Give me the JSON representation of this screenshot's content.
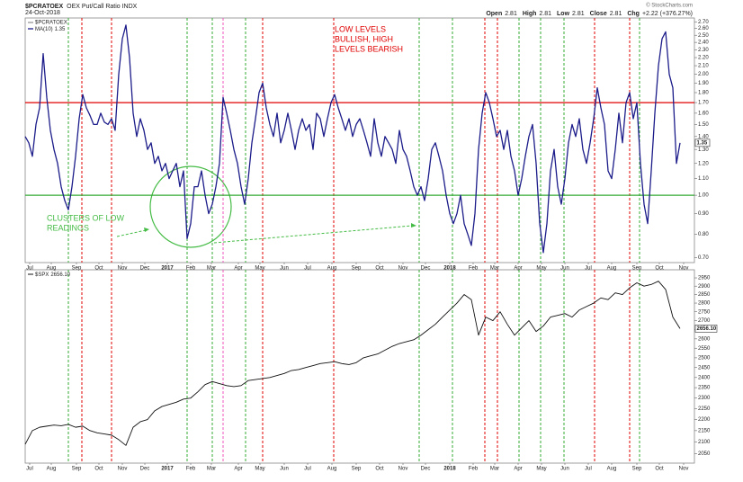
{
  "chart_data": [
    {
      "type": "line",
      "ticker": "$PCRATOEX",
      "title": "OEX Put/Call Ratio INDX",
      "date": "24-Oct-2018",
      "watermark": "© StockCharts.com",
      "stats": [
        {
          "label": "Open",
          "value": 2.81
        },
        {
          "label": "High",
          "value": 2.81
        },
        {
          "label": "Low",
          "value": 2.81
        },
        {
          "label": "Close",
          "value": 2.81
        }
      ],
      "change_label": "Chg",
      "change": "+2.22 (+376.27%)",
      "log": true,
      "xlim": [
        0,
        186
      ],
      "ylim": [
        0.68,
        2.76
      ],
      "xticks": [
        {
          "value": 1.25,
          "label": "Jul"
        },
        {
          "value": 7.25,
          "label": "Aug"
        },
        {
          "value": 14.25,
          "label": "Sep"
        },
        {
          "value": 20.5,
          "label": "Oct"
        },
        {
          "value": 27,
          "label": "Nov"
        },
        {
          "value": 33.25,
          "label": "Dec"
        },
        {
          "value": 39.5,
          "label": "2017"
        },
        {
          "value": 46,
          "label": "Feb"
        },
        {
          "value": 51.75,
          "label": "Mar"
        },
        {
          "value": 59.25,
          "label": "Apr"
        },
        {
          "value": 65.25,
          "label": "May"
        },
        {
          "value": 72,
          "label": "Jun"
        },
        {
          "value": 78.5,
          "label": "Jul"
        },
        {
          "value": 85.25,
          "label": "Aug"
        },
        {
          "value": 92,
          "label": "Sep"
        },
        {
          "value": 98.5,
          "label": "Oct"
        },
        {
          "value": 105,
          "label": "Nov"
        },
        {
          "value": 111.25,
          "label": "Dec"
        },
        {
          "value": 118,
          "label": "2018"
        },
        {
          "value": 124.5,
          "label": "Feb"
        },
        {
          "value": 130.5,
          "label": "Mar"
        },
        {
          "value": 137,
          "label": "Apr"
        },
        {
          "value": 143.5,
          "label": "May"
        },
        {
          "value": 150,
          "label": "Jun"
        },
        {
          "value": 156.5,
          "label": "Jul"
        },
        {
          "value": 163,
          "label": "Aug"
        },
        {
          "value": 170,
          "label": "Sep"
        },
        {
          "value": 176.25,
          "label": "Oct"
        },
        {
          "value": 183,
          "label": "Nov"
        }
      ],
      "yticks": [
        {
          "value": 0.7,
          "label": "0.70"
        },
        {
          "value": 0.8,
          "label": "0.80"
        },
        {
          "value": 0.9,
          "label": "0.90"
        },
        {
          "value": 1.0,
          "label": "1.00"
        },
        {
          "value": 1.1,
          "label": "1.10"
        },
        {
          "value": 1.2,
          "label": "1.20"
        },
        {
          "value": 1.3,
          "label": "1.30"
        },
        {
          "value": 1.4,
          "label": "1.40"
        },
        {
          "value": 1.5,
          "label": "1.50"
        },
        {
          "value": 1.6,
          "label": "1.60"
        },
        {
          "value": 1.7,
          "label": "1.70"
        },
        {
          "value": 1.8,
          "label": "1.80"
        },
        {
          "value": 1.9,
          "label": "1.90"
        },
        {
          "value": 2.0,
          "label": "2.00"
        },
        {
          "value": 2.1,
          "label": "2.10"
        },
        {
          "value": 2.2,
          "label": "2.20"
        },
        {
          "value": 2.3,
          "label": "2.30"
        },
        {
          "value": 2.4,
          "label": "2.40"
        },
        {
          "value": 2.5,
          "label": "2.50"
        },
        {
          "value": 2.6,
          "label": "2.60"
        },
        {
          "value": 2.7,
          "label": "2.70"
        }
      ],
      "hlines": [
        {
          "value": 1.7,
          "color": "#e00000"
        },
        {
          "value": 1.0,
          "color": "#33aa33"
        }
      ],
      "vlines": [
        {
          "x": 12,
          "color": "#33aa33"
        },
        {
          "x": 15.75,
          "color": "#e00000"
        },
        {
          "x": 24,
          "color": "#e00000"
        },
        {
          "x": 45,
          "color": "#33aa33"
        },
        {
          "x": 52,
          "color": "#33aa33"
        },
        {
          "x": 55,
          "color": "#ee55bb"
        },
        {
          "x": 61.25,
          "color": "#33aa33"
        },
        {
          "x": 66,
          "color": "#e00000"
        },
        {
          "x": 85.75,
          "color": "#e00000"
        },
        {
          "x": 109.5,
          "color": "#33aa33"
        },
        {
          "x": 118.75,
          "color": "#33aa33"
        },
        {
          "x": 127.75,
          "color": "#e00000"
        },
        {
          "x": 131.25,
          "color": "#e00000"
        },
        {
          "x": 137.25,
          "color": "#33aa33"
        },
        {
          "x": 143.25,
          "color": "#33aa33"
        },
        {
          "x": 149.75,
          "color": "#33aa33"
        },
        {
          "x": 158.25,
          "color": "#e00000"
        },
        {
          "x": 168,
          "color": "#e00000"
        },
        {
          "x": 170.75,
          "color": "#33aa33"
        }
      ],
      "annotations": [
        {
          "lines": [
            "LOW LEVELS",
            "BULLISH, HIGH",
            "LEVELS BEARISH"
          ],
          "color": "#e00000"
        },
        {
          "lines": [
            "CLUSTERS OF LOW",
            "READINGS"
          ],
          "color": "#44bb44"
        }
      ],
      "last_value": 1.35,
      "x": [
        0,
        1,
        2,
        3,
        4,
        5,
        6,
        7,
        8,
        9,
        10,
        11,
        12,
        13,
        14,
        15,
        16,
        17,
        18,
        19,
        20,
        21,
        22,
        23,
        24,
        25,
        26,
        27,
        28,
        29,
        30,
        31,
        32,
        33,
        34,
        35,
        36,
        37,
        38,
        39,
        40,
        41,
        42,
        43,
        44,
        45,
        46,
        47,
        48,
        49,
        50,
        51,
        52,
        53,
        54,
        55,
        56,
        57,
        58,
        59,
        60,
        61,
        62,
        63,
        64,
        65,
        66,
        67,
        68,
        69,
        70,
        71,
        72,
        73,
        74,
        75,
        76,
        77,
        78,
        79,
        80,
        81,
        82,
        83,
        84,
        85,
        86,
        87,
        88,
        89,
        90,
        91,
        92,
        93,
        94,
        95,
        96,
        97,
        98,
        99,
        100,
        101,
        102,
        103,
        104,
        105,
        106,
        107,
        108,
        109,
        110,
        111,
        112,
        113,
        114,
        115,
        116,
        117,
        118,
        119,
        120,
        121,
        122,
        123,
        124,
        125,
        126,
        127,
        128,
        129,
        130,
        131,
        132,
        133,
        134,
        135,
        136,
        137,
        138,
        139,
        140,
        141,
        142,
        143,
        144,
        145,
        146,
        147,
        148,
        149,
        150,
        151,
        152,
        153,
        154,
        155,
        156,
        157,
        158,
        159,
        160,
        161,
        162,
        163,
        164,
        165,
        166,
        167,
        168,
        169,
        170,
        171,
        172,
        173,
        174,
        175,
        176,
        177,
        178,
        179,
        180,
        181,
        182
      ],
      "series": [
        {
          "name": "MA(10)",
          "color": "#1c1c8a",
          "values": [
            1.4,
            1.35,
            1.25,
            1.5,
            1.65,
            2.25,
            1.75,
            1.45,
            1.3,
            1.2,
            1.05,
            0.97,
            0.92,
            1.05,
            1.25,
            1.55,
            1.78,
            1.65,
            1.58,
            1.5,
            1.5,
            1.6,
            1.52,
            1.5,
            1.55,
            1.45,
            2.0,
            2.45,
            2.65,
            2.2,
            1.6,
            1.4,
            1.55,
            1.45,
            1.3,
            1.35,
            1.2,
            1.25,
            1.15,
            1.2,
            1.1,
            1.15,
            1.2,
            1.05,
            1.15,
            0.78,
            0.85,
            1.05,
            1.05,
            1.15,
            1.0,
            0.9,
            0.95,
            1.05,
            1.2,
            1.75,
            1.6,
            1.45,
            1.3,
            1.2,
            1.05,
            0.95,
            1.1,
            1.35,
            1.55,
            1.8,
            1.9,
            1.65,
            1.5,
            1.4,
            1.6,
            1.35,
            1.45,
            1.6,
            1.45,
            1.3,
            1.45,
            1.55,
            1.45,
            1.5,
            1.3,
            1.6,
            1.55,
            1.4,
            1.55,
            1.7,
            1.78,
            1.65,
            1.55,
            1.45,
            1.55,
            1.4,
            1.5,
            1.55,
            1.45,
            1.35,
            1.25,
            1.55,
            1.35,
            1.25,
            1.4,
            1.35,
            1.3,
            1.2,
            1.45,
            1.3,
            1.25,
            1.15,
            1.05,
            1.0,
            1.05,
            0.97,
            1.1,
            1.3,
            1.35,
            1.25,
            1.15,
            1.0,
            0.9,
            0.85,
            0.9,
            1.0,
            0.85,
            0.8,
            0.75,
            0.9,
            1.3,
            1.6,
            1.8,
            1.7,
            1.55,
            1.4,
            1.45,
            1.3,
            1.45,
            1.25,
            1.15,
            1.0,
            1.1,
            1.25,
            1.4,
            1.5,
            1.2,
            0.85,
            0.72,
            0.85,
            1.15,
            1.3,
            1.05,
            0.95,
            1.1,
            1.35,
            1.5,
            1.4,
            1.55,
            1.3,
            1.2,
            1.35,
            1.55,
            1.85,
            1.65,
            1.5,
            1.15,
            1.1,
            1.3,
            1.6,
            1.35,
            1.7,
            1.8,
            1.55,
            1.7,
            1.2,
            0.95,
            0.85,
            1.15,
            1.6,
            2.1,
            2.45,
            2.55,
            2.0,
            1.85,
            1.2,
            1.35
          ]
        }
      ]
    },
    {
      "type": "line",
      "log": true,
      "xlim": [
        0,
        186
      ],
      "ylim": [
        2010,
        3000
      ],
      "yticks": [
        2050,
        2100,
        2150,
        2200,
        2250,
        2300,
        2350,
        2400,
        2450,
        2500,
        2550,
        2600,
        2650,
        2700,
        2750,
        2800,
        2850,
        2900,
        2950
      ],
      "last_value": 2656.1,
      "last_value_label": "2656.10",
      "x": [
        0,
        2,
        4,
        6,
        8,
        10,
        12,
        14,
        16,
        18,
        20,
        22,
        24,
        26,
        28,
        30,
        32,
        34,
        36,
        38,
        40,
        42,
        44,
        46,
        48,
        50,
        52,
        54,
        56,
        58,
        60,
        62,
        64,
        66,
        68,
        70,
        72,
        74,
        76,
        78,
        80,
        82,
        84,
        86,
        88,
        90,
        92,
        94,
        96,
        98,
        100,
        102,
        104,
        106,
        108,
        110,
        112,
        114,
        116,
        118,
        120,
        122,
        124,
        126,
        128,
        130,
        132,
        134,
        136,
        138,
        140,
        142,
        144,
        146,
        148,
        150,
        152,
        154,
        156,
        158,
        160,
        162,
        164,
        166,
        168,
        170,
        172,
        174,
        176,
        178,
        180,
        182
      ],
      "series": [
        {
          "name": "$SPX",
          "color": "#111111",
          "values": [
            2090,
            2150,
            2165,
            2170,
            2175,
            2172,
            2178,
            2165,
            2170,
            2150,
            2140,
            2135,
            2130,
            2110,
            2085,
            2165,
            2190,
            2200,
            2240,
            2260,
            2270,
            2280,
            2295,
            2300,
            2330,
            2365,
            2380,
            2370,
            2360,
            2355,
            2360,
            2385,
            2390,
            2395,
            2400,
            2410,
            2420,
            2435,
            2440,
            2450,
            2460,
            2470,
            2475,
            2480,
            2470,
            2465,
            2475,
            2500,
            2510,
            2520,
            2540,
            2560,
            2575,
            2585,
            2595,
            2620,
            2650,
            2680,
            2720,
            2760,
            2800,
            2850,
            2820,
            2620,
            2720,
            2700,
            2750,
            2680,
            2620,
            2660,
            2700,
            2640,
            2670,
            2720,
            2730,
            2740,
            2720,
            2760,
            2780,
            2800,
            2830,
            2820,
            2860,
            2850,
            2890,
            2920,
            2900,
            2910,
            2930,
            2880,
            2720,
            2656.1
          ]
        }
      ]
    }
  ]
}
